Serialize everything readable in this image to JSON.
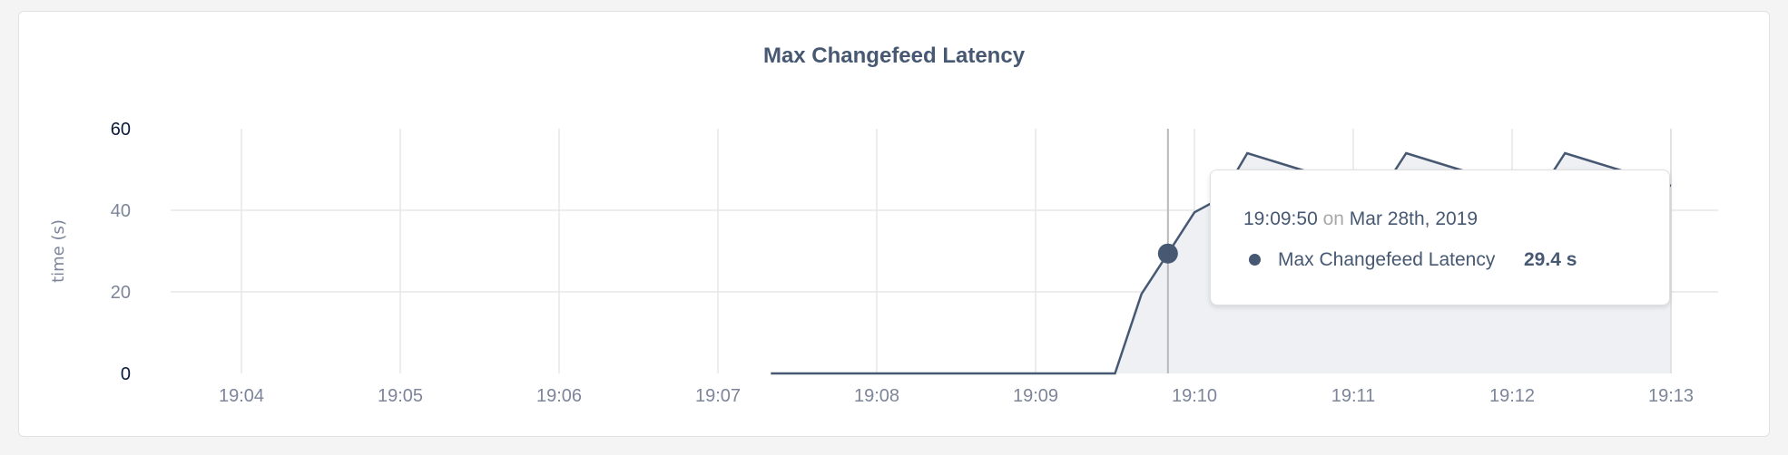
{
  "chart_data": {
    "type": "area",
    "title": "Max Changefeed Latency",
    "xlabel": "",
    "ylabel": "time (s)",
    "ylim": [
      0,
      60
    ],
    "yticks": [
      "0",
      "20",
      "40",
      "60"
    ],
    "xticks": [
      "19:04",
      "19:05",
      "19:06",
      "19:07",
      "19:08",
      "19:09",
      "19:10",
      "19:11",
      "19:12",
      "19:13"
    ],
    "grid": true,
    "colors": {
      "line": "#475872",
      "fill": "#eef0f4",
      "grid": "#e7e7e7"
    },
    "series": [
      {
        "name": "Max Changefeed Latency",
        "points": [
          [
            "19:07:20",
            0
          ],
          [
            "19:07:30",
            0
          ],
          [
            "19:07:40",
            0
          ],
          [
            "19:07:50",
            0
          ],
          [
            "19:08:00",
            0
          ],
          [
            "19:08:10",
            0
          ],
          [
            "19:08:20",
            0
          ],
          [
            "19:08:30",
            0
          ],
          [
            "19:08:40",
            0
          ],
          [
            "19:08:50",
            0
          ],
          [
            "19:09:00",
            0
          ],
          [
            "19:09:10",
            0
          ],
          [
            "19:09:20",
            0
          ],
          [
            "19:09:30",
            0
          ],
          [
            "19:09:40",
            19.5
          ],
          [
            "19:09:50",
            29.4
          ],
          [
            "19:10:00",
            39.5
          ],
          [
            "19:10:10",
            43
          ],
          [
            "19:10:20",
            54
          ],
          [
            "19:10:30",
            52
          ],
          [
            "19:10:40",
            50
          ],
          [
            "19:10:50",
            48
          ],
          [
            "19:11:00",
            46
          ],
          [
            "19:11:10",
            44
          ],
          [
            "19:11:20",
            54
          ],
          [
            "19:11:30",
            52
          ],
          [
            "19:11:40",
            50
          ],
          [
            "19:11:50",
            48
          ],
          [
            "19:12:00",
            46
          ],
          [
            "19:12:10",
            44
          ],
          [
            "19:12:20",
            54
          ],
          [
            "19:12:30",
            52
          ],
          [
            "19:12:40",
            50
          ],
          [
            "19:12:50",
            48
          ],
          [
            "19:13:00",
            46
          ]
        ]
      }
    ],
    "hover": {
      "time": "19:09:50",
      "value": 29.4
    }
  },
  "tooltip": {
    "time": "19:09:50",
    "on": "on",
    "date": "Mar 28th, 2019",
    "series_name": "Max Changefeed Latency",
    "value": "29.4 s"
  }
}
